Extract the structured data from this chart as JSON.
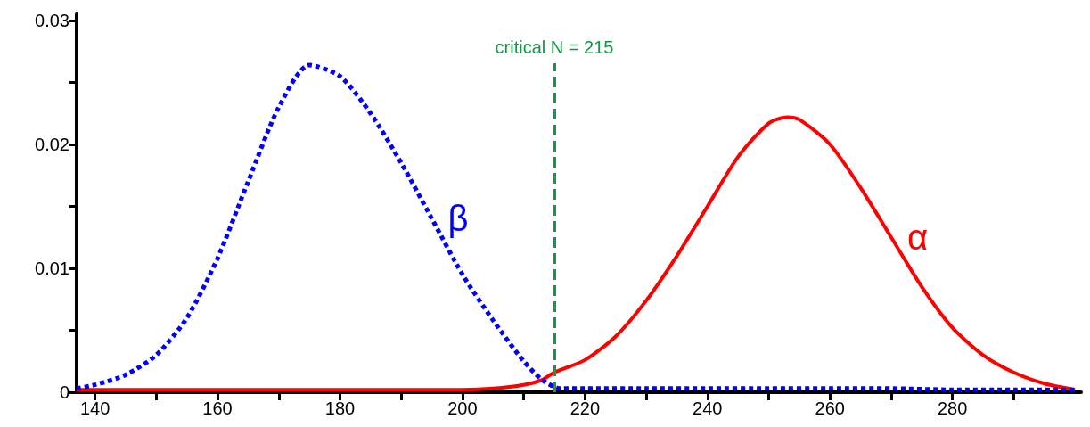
{
  "chart_data": {
    "type": "line",
    "x": [
      137,
      140,
      145,
      150,
      155,
      160,
      165,
      170,
      175,
      180,
      185,
      190,
      195,
      200,
      205,
      210,
      213,
      216,
      220,
      230,
      240,
      250,
      260,
      270,
      280,
      290,
      300
    ],
    "series": [
      {
        "name": "β",
        "color": "#0000ff",
        "line_style": "dotted",
        "values": [
          0.0003,
          0.0006,
          0.0014,
          0.003,
          0.006,
          0.0108,
          0.017,
          0.023,
          0.0264,
          0.0255,
          0.0225,
          0.0185,
          0.014,
          0.0095,
          0.0058,
          0.0025,
          0.001,
          0.0003,
          0.0003,
          0.0003,
          0.0003,
          0.0003,
          0.0003,
          0.0003,
          0.0002,
          0.0002,
          0.0002
        ]
      },
      {
        "name": "α",
        "color": "#ff0000",
        "line_style": "solid",
        "x": [
          137,
          150,
          175,
          200,
          205,
          210,
          213,
          215,
          220,
          225,
          230,
          235,
          240,
          245,
          250,
          253,
          255,
          260,
          265,
          270,
          275,
          280,
          285,
          290,
          295,
          300
        ],
        "values": [
          0.0002,
          0.0002,
          0.0002,
          0.0002,
          0.0003,
          0.0006,
          0.001,
          0.0016,
          0.0026,
          0.0045,
          0.0074,
          0.011,
          0.015,
          0.019,
          0.0217,
          0.0222,
          0.022,
          0.02,
          0.0165,
          0.0125,
          0.0085,
          0.0052,
          0.003,
          0.0016,
          0.0007,
          0.0002
        ]
      }
    ],
    "xlim": [
      137,
      301
    ],
    "xticks": [
      140,
      {
        "value": 150,
        "label": null
      },
      160,
      {
        "value": 170,
        "label": null
      },
      180,
      {
        "value": 190,
        "label": null
      },
      200,
      {
        "value": 210,
        "label": null
      },
      220,
      {
        "value": 230,
        "label": null
      },
      240,
      {
        "value": 250,
        "label": null
      },
      260,
      {
        "value": 270,
        "label": null
      },
      280,
      {
        "value": 290,
        "label": null
      }
    ],
    "ylim": [
      0,
      0.0305
    ],
    "yticks": [
      0,
      {
        "value": 0.005,
        "label": null
      },
      0.01,
      {
        "value": 0.015,
        "label": null
      },
      0.02,
      {
        "value": 0.025,
        "label": null
      },
      0.03
    ],
    "ref_lines": [
      {
        "axis": "x",
        "value": 215,
        "label": "critical N = 215",
        "color": "#119944",
        "line_style": "dashed"
      }
    ],
    "grid": false,
    "legend": false,
    "marker": "none"
  }
}
